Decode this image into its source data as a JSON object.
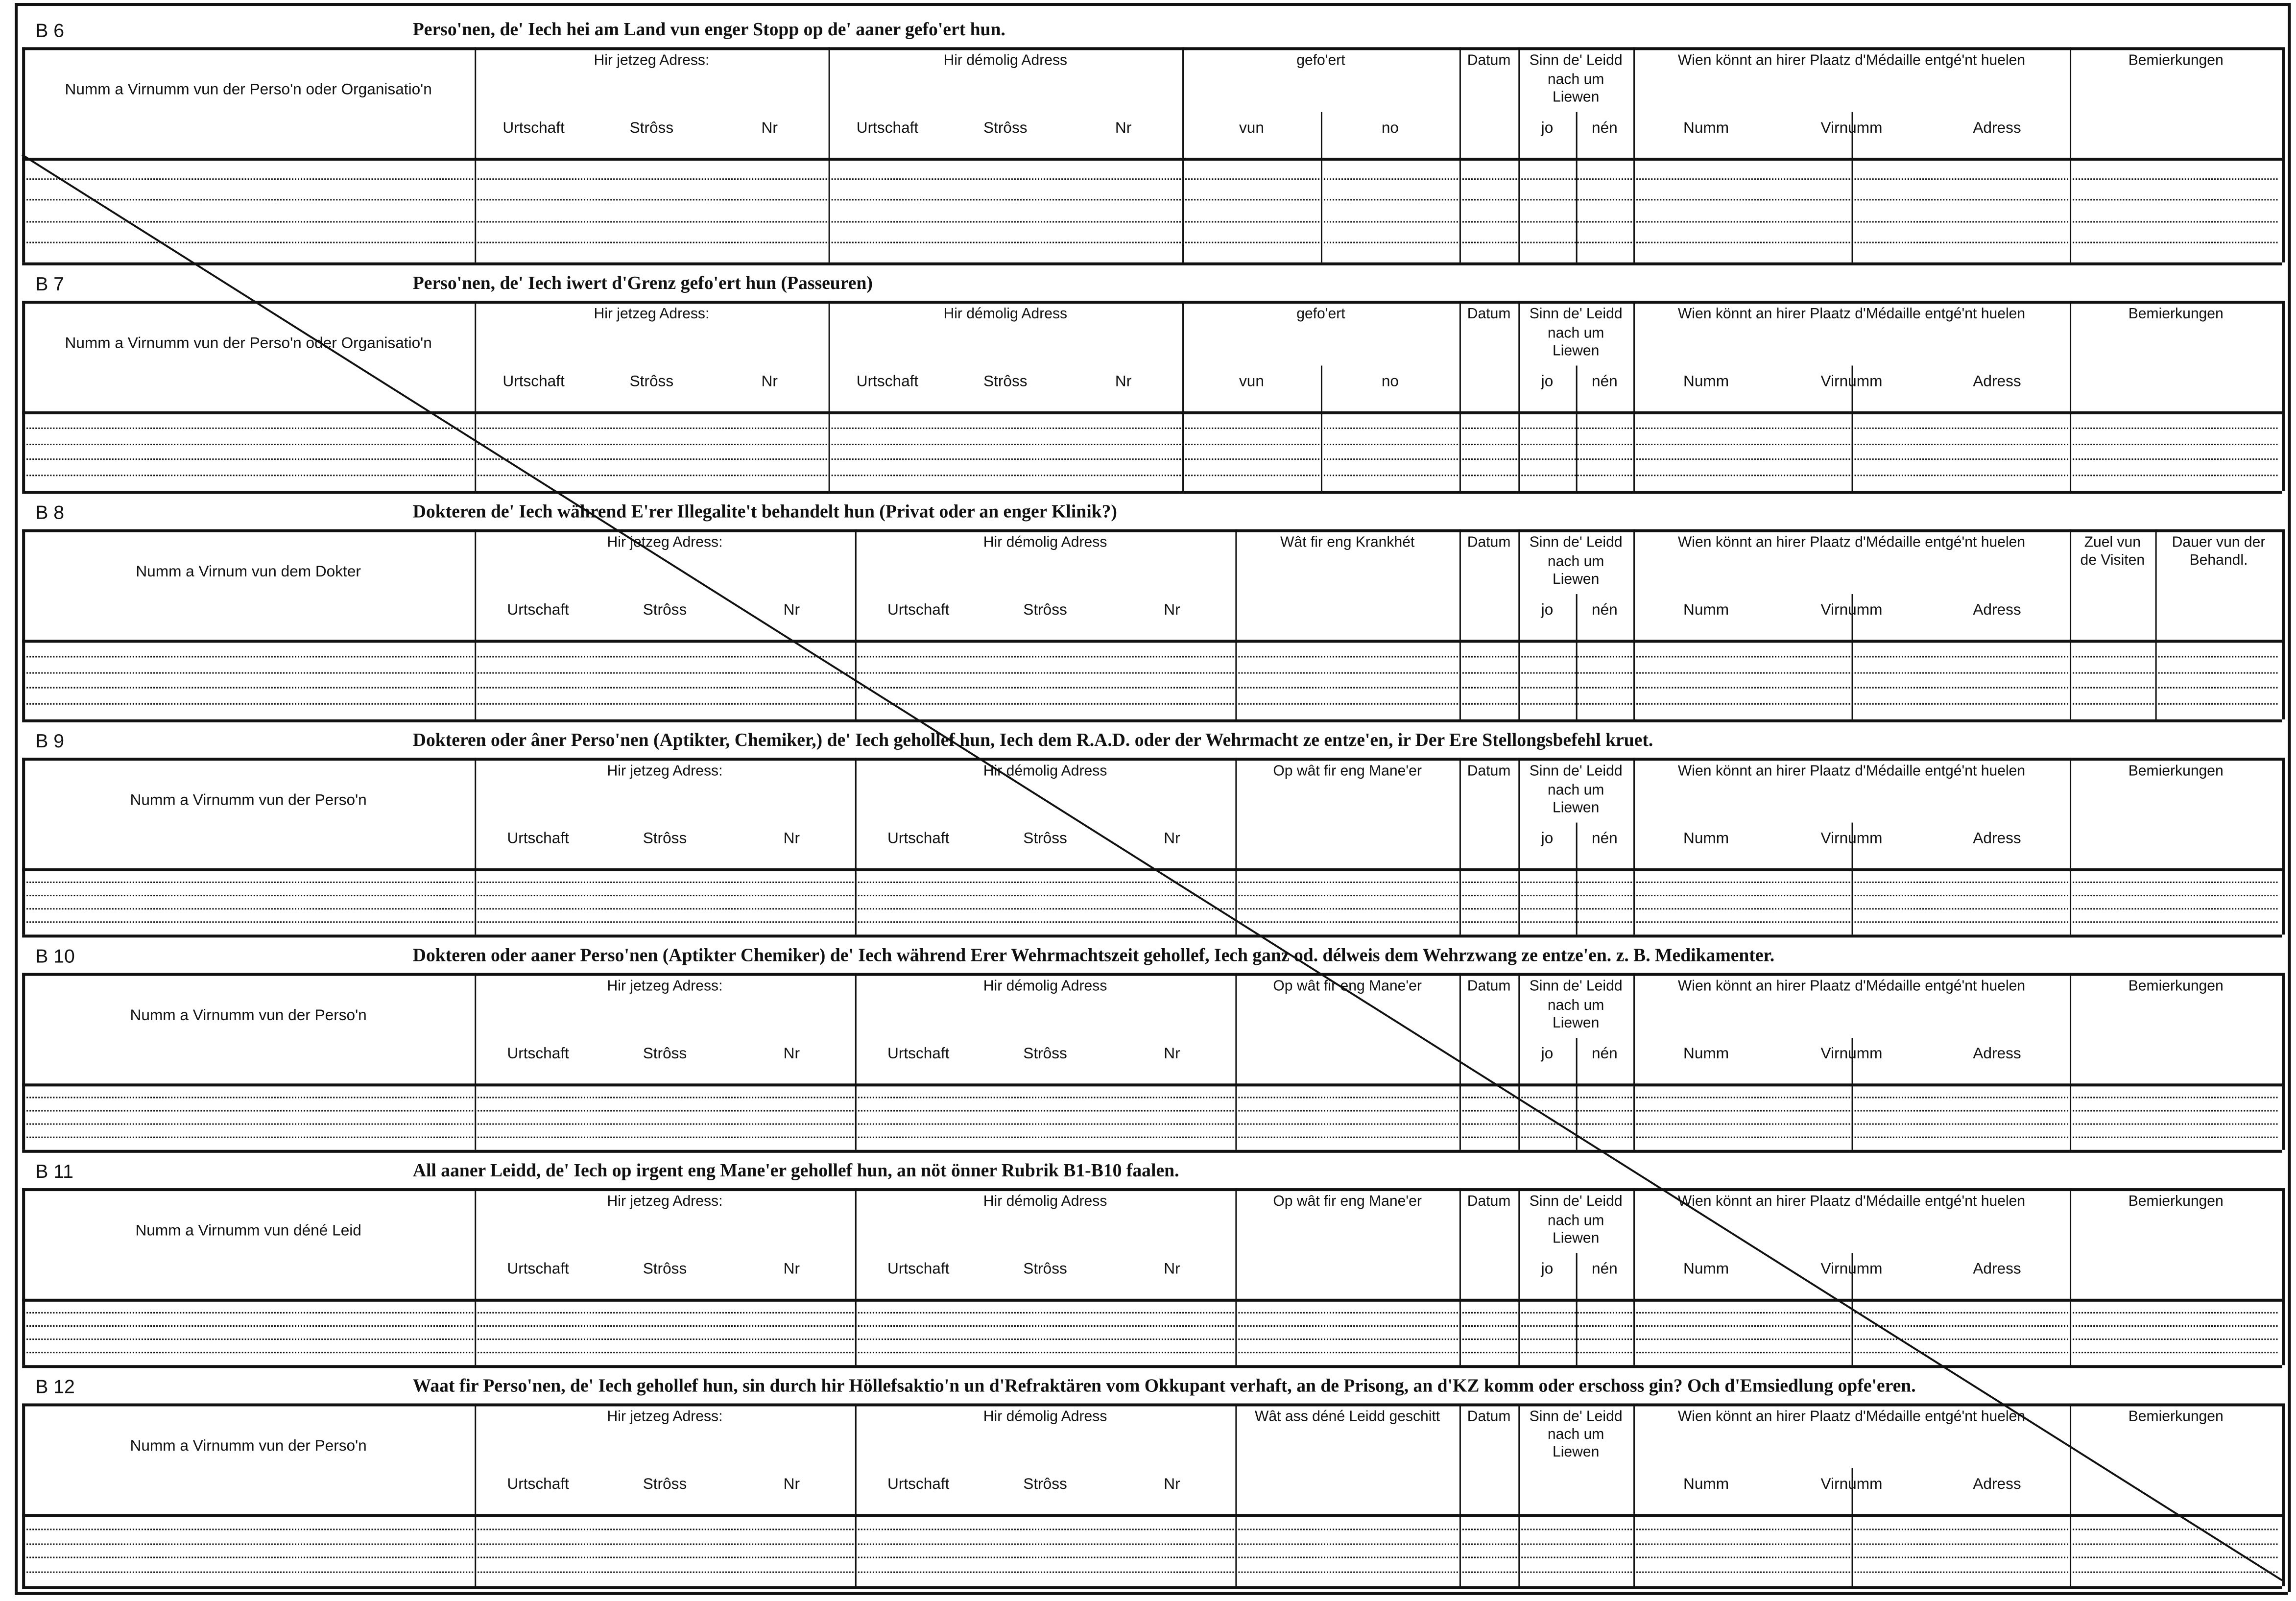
{
  "sections": [
    {
      "code": "B 6",
      "title": "Perso'nen, de' Iech hei am Land vun enger Stopp op de' aaner gefo'ert hun.",
      "columns": [
        {
          "label": "Numm a Virnumm vun der Perso'n oder Organisatio'n"
        },
        {
          "label": "Hir jetzeg Adress:",
          "sub": [
            "Urtschaft",
            "Strôss",
            "Nr"
          ]
        },
        {
          "label": "Hir démolig Adress",
          "sub": [
            "Urtschaft",
            "Strôss",
            "Nr"
          ]
        },
        {
          "label": "gefo'ert",
          "sub": [
            "vun",
            "no"
          ]
        },
        {
          "label": "Datum"
        },
        {
          "label": "Sinn de' Leidd nach um Liewen",
          "sub": [
            "jo",
            "nén"
          ]
        },
        {
          "label": "Wien könnt an hirer Plaatz d'Médaille entgé'nt huelen",
          "sub": [
            "Numm",
            "Virnumm",
            "Adress"
          ]
        },
        {
          "label": "Bemierkungen"
        }
      ]
    },
    {
      "code": "B 7",
      "title": "Perso'nen, de' Iech iwert d'Grenz gefo'ert hun (Passeuren)",
      "columns": [
        {
          "label": "Numm a Virnumm vun der Perso'n oder Organisatio'n"
        },
        {
          "label": "Hir jetzeg Adress:",
          "sub": [
            "Urtschaft",
            "Strôss",
            "Nr"
          ]
        },
        {
          "label": "Hir démolig Adress",
          "sub": [
            "Urtschaft",
            "Strôss",
            "Nr"
          ]
        },
        {
          "label": "gefo'ert",
          "sub": [
            "vun",
            "no"
          ]
        },
        {
          "label": "Datum"
        },
        {
          "label": "Sinn de' Leidd nach um Liewen",
          "sub": [
            "jo",
            "nén"
          ]
        },
        {
          "label": "Wien könnt an hirer Plaatz d'Médaille entgé'nt huelen",
          "sub": [
            "Numm",
            "Virnumm",
            "Adress"
          ]
        },
        {
          "label": "Bemierkungen"
        }
      ]
    },
    {
      "code": "B 8",
      "title": "Dokteren de' Iech während E'rer Illegalite't behandelt hun (Privat oder an enger Klinik?)",
      "columns": [
        {
          "label": "Numm a Virnum vun dem Dokter"
        },
        {
          "label": "Hir jetzeg Adress:",
          "sub": [
            "Urtschaft",
            "Strôss",
            "Nr"
          ]
        },
        {
          "label": "Hir démolig Adress",
          "sub": [
            "Urtschaft",
            "Strôss",
            "Nr"
          ]
        },
        {
          "label": "Wât fir eng Krankhét"
        },
        {
          "label": "Datum"
        },
        {
          "label": "Sinn de' Leidd nach um Liewen",
          "sub": [
            "jo",
            "nén"
          ]
        },
        {
          "label": "Wien könnt an hirer Plaatz d'Médaille entgé'nt huelen",
          "sub": [
            "Numm",
            "Virnumm",
            "Adress"
          ]
        },
        {
          "label": "Zuel vun de Visiten"
        },
        {
          "label": "Dauer vun der Behandl."
        }
      ]
    },
    {
      "code": "B 9",
      "title": "Dokteren oder âner Perso'nen (Aptikter, Chemiker,) de' Iech gehollef hun, Iech dem R.A.D. oder der Wehrmacht ze entze'en, ir Der Ere Stellongsbefehl kruet.",
      "columns": [
        {
          "label": "Numm a Virnumm vun der Perso'n"
        },
        {
          "label": "Hir jetzeg Adress:",
          "sub": [
            "Urtschaft",
            "Strôss",
            "Nr"
          ]
        },
        {
          "label": "Hir démolig Adress",
          "sub": [
            "Urtschaft",
            "Strôss",
            "Nr"
          ]
        },
        {
          "label": "Op wât fir eng Mane'er"
        },
        {
          "label": "Datum"
        },
        {
          "label": "Sinn de' Leidd nach um Liewen",
          "sub": [
            "jo",
            "nén"
          ]
        },
        {
          "label": "Wien könnt an hirer Plaatz d'Médaille entgé'nt huelen",
          "sub": [
            "Numm",
            "Virnumm",
            "Adress"
          ]
        },
        {
          "label": "Bemierkungen"
        }
      ]
    },
    {
      "code": "B 10",
      "title": "Dokteren oder aaner Perso'nen (Aptikter Chemiker) de' Iech während Erer Wehrmachtszeit gehollef, Iech ganz od. délweis dem Wehrzwang ze entze'en. z. B. Medikamenter.",
      "columns": [
        {
          "label": "Numm a Virnumm vun der Perso'n"
        },
        {
          "label": "Hir jetzeg Adress:",
          "sub": [
            "Urtschaft",
            "Strôss",
            "Nr"
          ]
        },
        {
          "label": "Hir démolig Adress",
          "sub": [
            "Urtschaft",
            "Strôss",
            "Nr"
          ]
        },
        {
          "label": "Op wât fir eng Mane'er"
        },
        {
          "label": "Datum"
        },
        {
          "label": "Sinn de' Leidd nach um Liewen",
          "sub": [
            "jo",
            "nén"
          ]
        },
        {
          "label": "Wien könnt an hirer Plaatz d'Médaille entgé'nt huelen",
          "sub": [
            "Numm",
            "Virnumm",
            "Adress"
          ]
        },
        {
          "label": "Bemierkungen"
        }
      ]
    },
    {
      "code": "B 11",
      "title": "All aaner Leidd, de' Iech op irgent eng Mane'er gehollef hun, an nöt önner Rubrik B1-B10 faalen.",
      "columns": [
        {
          "label": "Numm a Virnumm vun déné Leid"
        },
        {
          "label": "Hir jetzeg Adress:",
          "sub": [
            "Urtschaft",
            "Strôss",
            "Nr"
          ]
        },
        {
          "label": "Hir démolig Adress",
          "sub": [
            "Urtschaft",
            "Strôss",
            "Nr"
          ]
        },
        {
          "label": "Op wât fir eng Mane'er"
        },
        {
          "label": "Datum"
        },
        {
          "label": "Sinn de' Leidd nach um Liewen",
          "sub": [
            "jo",
            "nén"
          ]
        },
        {
          "label": "Wien könnt an hirer Plaatz d'Médaille entgé'nt huelen",
          "sub": [
            "Numm",
            "Virnumm",
            "Adress"
          ]
        },
        {
          "label": "Bemierkungen"
        }
      ]
    },
    {
      "code": "B 12",
      "title": "Waat fir Perso'nen, de' Iech gehollef hun, sin durch hir Höllefsaktio'n un d'Refraktären vom Okkupant verhaft, an de Prisong, an d'KZ komm oder erschoss gin? Och d'Emsiedlung opfe'eren.",
      "columns": [
        {
          "label": "Numm a Virnumm vun der Perso'n"
        },
        {
          "label": "Hir jetzeg Adress:",
          "sub": [
            "Urtschaft",
            "Strôss",
            "Nr"
          ]
        },
        {
          "label": "Hir démolig Adress",
          "sub": [
            "Urtschaft",
            "Strôss",
            "Nr"
          ]
        },
        {
          "label": "Wât ass déné Leidd geschitt"
        },
        {
          "label": "Datum"
        },
        {
          "label": "Sinn de' Leidd nach um Liewen"
        },
        {
          "label": "Wien könnt an hirer Plaatz d'Médaille entgé'nt huelen",
          "sub": [
            "Numm",
            "Virnumm",
            "Adress"
          ]
        },
        {
          "label": "Bemierkungen"
        }
      ]
    }
  ]
}
